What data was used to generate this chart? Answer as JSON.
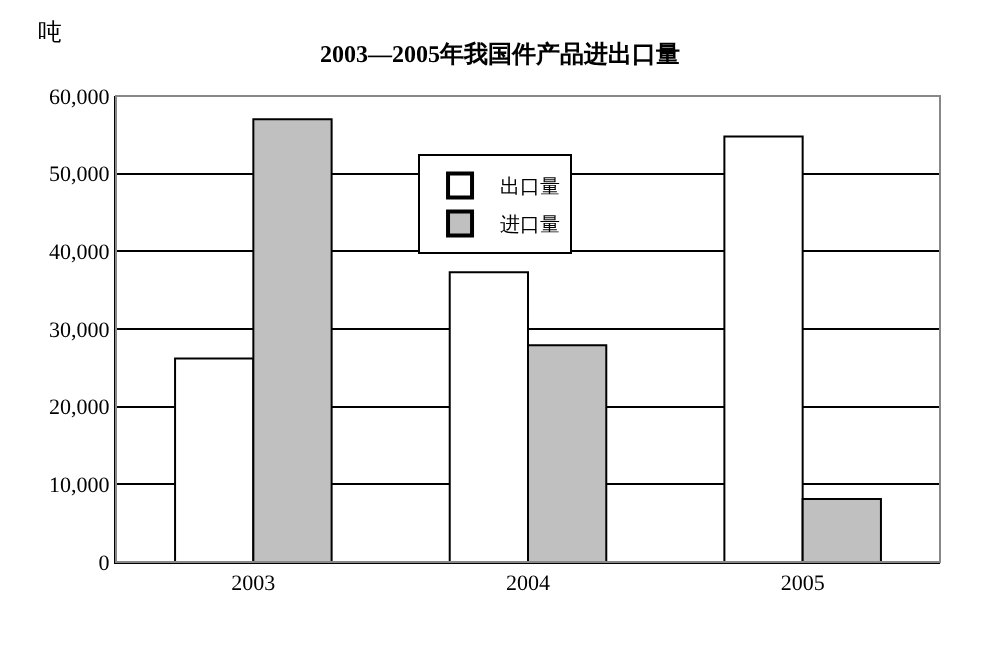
{
  "chart_data": {
    "type": "bar",
    "title": "2003—2005年我国件产品进出口量",
    "ylabel": "吨",
    "categories": [
      "2003",
      "2004",
      "2005"
    ],
    "series": [
      {
        "name": "出口量",
        "color": "#ffffff",
        "values": [
          26200,
          37300,
          54800
        ]
      },
      {
        "name": "进口量",
        "color": "#c0c0c0",
        "values": [
          57000,
          27900,
          8100
        ]
      }
    ],
    "ylim": [
      0,
      60000
    ],
    "yticks": [
      {
        "value": 0,
        "label": "0"
      },
      {
        "value": 10000,
        "label": "10,000"
      },
      {
        "value": 20000,
        "label": "20,000"
      },
      {
        "value": 30000,
        "label": "30,000"
      },
      {
        "value": 40000,
        "label": "40,000"
      },
      {
        "value": 50000,
        "label": "50,000"
      },
      {
        "value": 60000,
        "label": "60,000"
      }
    ],
    "grid": "y",
    "legend": "top"
  }
}
